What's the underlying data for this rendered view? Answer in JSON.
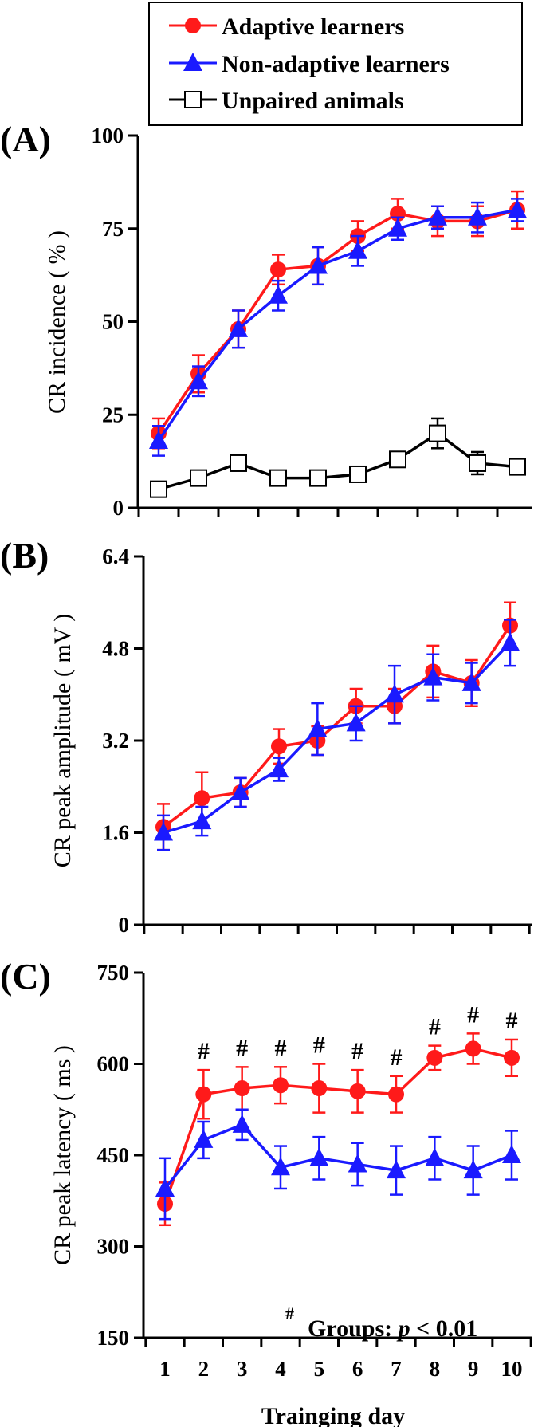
{
  "legend": {
    "items": [
      {
        "label": "Adaptive learners",
        "color": "#ff1a1a",
        "marker": "circle"
      },
      {
        "label": "Non-adaptive learners",
        "color": "#1a1aff",
        "marker": "triangle"
      },
      {
        "label": "Unpaired animals",
        "color": "#000000",
        "marker": "open-square"
      }
    ]
  },
  "xaxis": {
    "label": "Trainging day",
    "ticks": [
      "1",
      "2",
      "3",
      "4",
      "5",
      "6",
      "7",
      "8",
      "9",
      "10"
    ]
  },
  "annotation": {
    "hash": "#",
    "text_main": "Groups: ",
    "text_p": "p",
    "text_end": " < 0.01"
  },
  "chart_data": [
    {
      "type": "line",
      "panel_label": "(A)",
      "ylabel": "CR incidence ( % )",
      "ylim": [
        0,
        100
      ],
      "yticks": [
        "0",
        "25",
        "50",
        "75",
        "100"
      ],
      "x": [
        1,
        2,
        3,
        4,
        5,
        6,
        7,
        8,
        9,
        10
      ],
      "series": [
        {
          "name": "Adaptive learners",
          "color": "#ff1a1a",
          "marker": "circle",
          "values": [
            20,
            36,
            48,
            64,
            65,
            73,
            79,
            77,
            77,
            80
          ],
          "errors": [
            4,
            5,
            5,
            4,
            5,
            4,
            4,
            4,
            4,
            5
          ]
        },
        {
          "name": "Non-adaptive learners",
          "color": "#1a1aff",
          "marker": "triangle",
          "values": [
            18,
            34,
            48,
            57,
            65,
            69,
            75,
            78,
            78,
            80
          ],
          "errors": [
            4,
            4,
            5,
            4,
            5,
            4,
            3,
            3,
            4,
            3
          ]
        },
        {
          "name": "Unpaired animals",
          "color": "#000000",
          "marker": "open-square",
          "values": [
            5,
            8,
            12,
            8,
            8,
            9,
            13,
            20,
            12,
            11
          ],
          "errors": [
            1,
            1,
            2,
            1,
            1,
            1,
            2,
            4,
            3,
            2
          ]
        }
      ],
      "hash_days": []
    },
    {
      "type": "line",
      "panel_label": "(B)",
      "ylabel": "CR peak amplitude ( mV )",
      "ylim": [
        0,
        6.4
      ],
      "yticks": [
        "0",
        "1.6",
        "3.2",
        "4.8",
        "6.4"
      ],
      "x": [
        1,
        2,
        3,
        4,
        5,
        6,
        7,
        8,
        9,
        10
      ],
      "series": [
        {
          "name": "Adaptive learners",
          "color": "#ff1a1a",
          "marker": "circle",
          "values": [
            1.7,
            2.2,
            2.3,
            3.1,
            3.2,
            3.8,
            3.8,
            4.4,
            4.2,
            5.2
          ],
          "errors": [
            0.4,
            0.45,
            0.25,
            0.3,
            0.25,
            0.3,
            0.3,
            0.45,
            0.4,
            0.4
          ]
        },
        {
          "name": "Non-adaptive learners",
          "color": "#1a1aff",
          "marker": "triangle",
          "values": [
            1.6,
            1.8,
            2.3,
            2.7,
            3.4,
            3.5,
            4.0,
            4.3,
            4.2,
            4.9
          ],
          "errors": [
            0.3,
            0.25,
            0.25,
            0.2,
            0.45,
            0.3,
            0.5,
            0.4,
            0.35,
            0.4
          ]
        }
      ],
      "hash_days": []
    },
    {
      "type": "line",
      "panel_label": "(C)",
      "ylabel": "CR peak latency ( ms )",
      "ylim": [
        150,
        750
      ],
      "yticks": [
        "150",
        "300",
        "450",
        "600",
        "750"
      ],
      "x": [
        1,
        2,
        3,
        4,
        5,
        6,
        7,
        8,
        9,
        10
      ],
      "series": [
        {
          "name": "Adaptive learners",
          "color": "#ff1a1a",
          "marker": "circle",
          "values": [
            370,
            550,
            560,
            565,
            560,
            555,
            550,
            610,
            625,
            610
          ],
          "errors": [
            35,
            40,
            35,
            30,
            40,
            35,
            30,
            20,
            25,
            30
          ]
        },
        {
          "name": "Non-adaptive learners",
          "color": "#1a1aff",
          "marker": "triangle",
          "values": [
            395,
            475,
            500,
            430,
            445,
            435,
            425,
            445,
            425,
            450
          ],
          "errors": [
            50,
            30,
            25,
            35,
            35,
            35,
            40,
            35,
            40,
            40
          ]
        }
      ],
      "hash_days": [
        2,
        3,
        4,
        5,
        6,
        7,
        8,
        9,
        10
      ]
    }
  ]
}
